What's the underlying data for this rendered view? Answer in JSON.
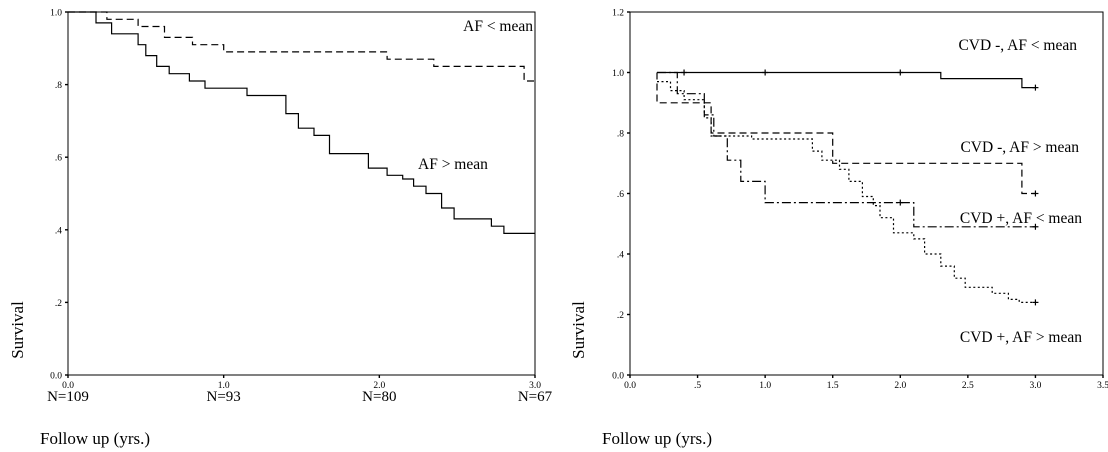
{
  "chart_data": [
    {
      "type": "line",
      "title": "",
      "xlabel": "Follow up (yrs.)",
      "ylabel": "Survival",
      "xlim": [
        0,
        3
      ],
      "ylim": [
        0,
        1
      ],
      "x_ticks": [
        "0.0",
        "1.0",
        "2.0",
        "3.0"
      ],
      "y_ticks": [
        "0.0",
        ".2",
        ".4",
        ".6",
        ".8",
        "1.0"
      ],
      "n_at_risk": [
        "N=109",
        "N=93",
        "N=80",
        "N=67"
      ],
      "annotations": [
        "AF < mean",
        "AF > mean"
      ],
      "grid": false,
      "series": [
        {
          "name": "AF < mean",
          "dash": "dashed",
          "points": [
            [
              0,
              1.0
            ],
            [
              0.25,
              1.0
            ],
            [
              0.25,
              0.98
            ],
            [
              0.45,
              0.98
            ],
            [
              0.45,
              0.96
            ],
            [
              0.62,
              0.96
            ],
            [
              0.62,
              0.93
            ],
            [
              0.8,
              0.93
            ],
            [
              0.8,
              0.91
            ],
            [
              1.0,
              0.91
            ],
            [
              1.0,
              0.89
            ],
            [
              1.22,
              0.89
            ],
            [
              1.22,
              0.89
            ],
            [
              2.05,
              0.89
            ],
            [
              2.05,
              0.87
            ],
            [
              2.35,
              0.87
            ],
            [
              2.35,
              0.85
            ],
            [
              2.93,
              0.85
            ],
            [
              2.93,
              0.81
            ],
            [
              3.0,
              0.81
            ]
          ]
        },
        {
          "name": "AF > mean",
          "dash": "solid",
          "points": [
            [
              0,
              1.0
            ],
            [
              0.18,
              1.0
            ],
            [
              0.18,
              0.97
            ],
            [
              0.28,
              0.97
            ],
            [
              0.28,
              0.94
            ],
            [
              0.45,
              0.94
            ],
            [
              0.45,
              0.91
            ],
            [
              0.5,
              0.91
            ],
            [
              0.5,
              0.88
            ],
            [
              0.57,
              0.88
            ],
            [
              0.57,
              0.85
            ],
            [
              0.65,
              0.85
            ],
            [
              0.65,
              0.83
            ],
            [
              0.78,
              0.83
            ],
            [
              0.78,
              0.81
            ],
            [
              0.88,
              0.81
            ],
            [
              0.88,
              0.79
            ],
            [
              1.15,
              0.79
            ],
            [
              1.15,
              0.77
            ],
            [
              1.4,
              0.77
            ],
            [
              1.4,
              0.72
            ],
            [
              1.48,
              0.72
            ],
            [
              1.48,
              0.68
            ],
            [
              1.58,
              0.68
            ],
            [
              1.58,
              0.66
            ],
            [
              1.68,
              0.66
            ],
            [
              1.68,
              0.61
            ],
            [
              1.93,
              0.61
            ],
            [
              1.93,
              0.57
            ],
            [
              2.05,
              0.57
            ],
            [
              2.05,
              0.55
            ],
            [
              2.15,
              0.55
            ],
            [
              2.15,
              0.54
            ],
            [
              2.22,
              0.54
            ],
            [
              2.22,
              0.52
            ],
            [
              2.3,
              0.52
            ],
            [
              2.3,
              0.5
            ],
            [
              2.4,
              0.5
            ],
            [
              2.4,
              0.46
            ],
            [
              2.48,
              0.46
            ],
            [
              2.48,
              0.43
            ],
            [
              2.72,
              0.43
            ],
            [
              2.72,
              0.41
            ],
            [
              2.8,
              0.41
            ],
            [
              2.8,
              0.39
            ],
            [
              3.0,
              0.39
            ]
          ]
        }
      ]
    },
    {
      "type": "line",
      "title": "",
      "xlabel": "Follow up (yrs.)",
      "ylabel": "Survival",
      "xlim": [
        0,
        3.5
      ],
      "ylim": [
        0,
        1.2
      ],
      "x_ticks": [
        "0.0",
        ".5",
        "1.0",
        "1.5",
        "2.0",
        "2.5",
        "3.0",
        "3.5"
      ],
      "y_ticks": [
        "0.0",
        ".2",
        ".4",
        ".6",
        ".8",
        "1.0",
        "1.2"
      ],
      "annotations": [
        "CVD -, AF < mean",
        "CVD -, AF > mean",
        "CVD +, AF < mean",
        "CVD +, AF > mean"
      ],
      "grid": false,
      "series": [
        {
          "name": "CVD -, AF < mean",
          "dash": "solid",
          "points": [
            [
              0.2,
              1.0
            ],
            [
              2.3,
              1.0
            ],
            [
              2.3,
              0.98
            ],
            [
              2.9,
              0.98
            ],
            [
              2.9,
              0.95
            ],
            [
              3.0,
              0.95
            ]
          ],
          "censors": [
            [
              0.4,
              1.0
            ],
            [
              1.0,
              1.0
            ],
            [
              2.0,
              1.0
            ],
            [
              3.0,
              0.95
            ]
          ]
        },
        {
          "name": "CVD -, AF > mean",
          "dash": "dashed",
          "points": [
            [
              0.2,
              1.0
            ],
            [
              0.2,
              0.9
            ],
            [
              0.45,
              0.9
            ],
            [
              0.45,
              0.9
            ],
            [
              0.6,
              0.9
            ],
            [
              0.6,
              0.8
            ],
            [
              1.5,
              0.8
            ],
            [
              1.5,
              0.7
            ],
            [
              2.9,
              0.7
            ],
            [
              2.9,
              0.6
            ],
            [
              3.0,
              0.6
            ]
          ],
          "censors": [
            [
              3.0,
              0.6
            ]
          ]
        },
        {
          "name": "CVD +, AF < mean",
          "dash": "dash-dot",
          "points": [
            [
              0.2,
              1.0
            ],
            [
              0.35,
              1.0
            ],
            [
              0.35,
              0.93
            ],
            [
              0.55,
              0.93
            ],
            [
              0.55,
              0.86
            ],
            [
              0.62,
              0.86
            ],
            [
              0.62,
              0.79
            ],
            [
              0.72,
              0.79
            ],
            [
              0.72,
              0.71
            ],
            [
              0.82,
              0.71
            ],
            [
              0.82,
              0.64
            ],
            [
              1.0,
              0.64
            ],
            [
              1.0,
              0.57
            ],
            [
              2.1,
              0.57
            ],
            [
              2.1,
              0.49
            ],
            [
              3.0,
              0.49
            ]
          ],
          "censors": [
            [
              2.0,
              0.57
            ],
            [
              3.0,
              0.49
            ]
          ]
        },
        {
          "name": "CVD +, AF > mean",
          "dash": "dotted",
          "points": [
            [
              0.2,
              0.97
            ],
            [
              0.3,
              0.97
            ],
            [
              0.3,
              0.94
            ],
            [
              0.4,
              0.94
            ],
            [
              0.4,
              0.91
            ],
            [
              0.55,
              0.91
            ],
            [
              0.55,
              0.85
            ],
            [
              0.6,
              0.85
            ],
            [
              0.6,
              0.79
            ],
            [
              0.9,
              0.79
            ],
            [
              0.9,
              0.78
            ],
            [
              1.35,
              0.78
            ],
            [
              1.35,
              0.74
            ],
            [
              1.42,
              0.74
            ],
            [
              1.42,
              0.71
            ],
            [
              1.55,
              0.71
            ],
            [
              1.55,
              0.68
            ],
            [
              1.62,
              0.68
            ],
            [
              1.62,
              0.64
            ],
            [
              1.72,
              0.64
            ],
            [
              1.72,
              0.59
            ],
            [
              1.8,
              0.59
            ],
            [
              1.8,
              0.56
            ],
            [
              1.85,
              0.56
            ],
            [
              1.85,
              0.52
            ],
            [
              1.95,
              0.52
            ],
            [
              1.95,
              0.47
            ],
            [
              2.1,
              0.47
            ],
            [
              2.1,
              0.45
            ],
            [
              2.18,
              0.45
            ],
            [
              2.18,
              0.4
            ],
            [
              2.3,
              0.4
            ],
            [
              2.3,
              0.36
            ],
            [
              2.4,
              0.36
            ],
            [
              2.4,
              0.32
            ],
            [
              2.48,
              0.32
            ],
            [
              2.48,
              0.29
            ],
            [
              2.68,
              0.29
            ],
            [
              2.68,
              0.27
            ],
            [
              2.8,
              0.27
            ],
            [
              2.8,
              0.25
            ],
            [
              2.88,
              0.25
            ],
            [
              2.88,
              0.24
            ],
            [
              3.0,
              0.24
            ]
          ],
          "censors": [
            [
              3.0,
              0.24
            ]
          ]
        }
      ]
    }
  ]
}
